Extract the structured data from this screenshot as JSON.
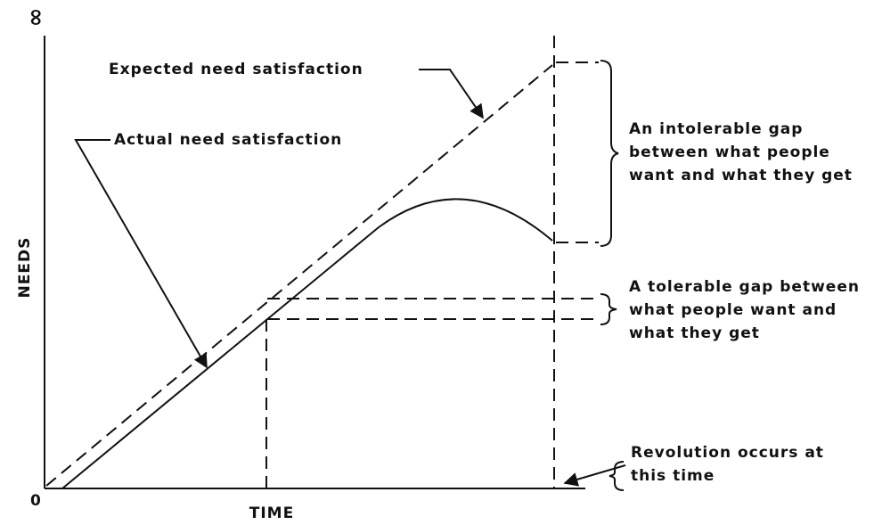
{
  "axes": {
    "origin": "0",
    "top": "∞",
    "y_label": "NEEDS",
    "x_label": "TIME"
  },
  "curves": {
    "expected": "Expected need satisfaction",
    "actual": "Actual need satisfaction"
  },
  "annotations": {
    "intolerable_gap": [
      "An intolerable gap",
      "between what people",
      "want and what they get"
    ],
    "tolerable_gap": [
      "A tolerable gap between",
      "what people want and",
      "what they get"
    ],
    "revolution": [
      "Revolution occurs at",
      "this time"
    ]
  }
}
